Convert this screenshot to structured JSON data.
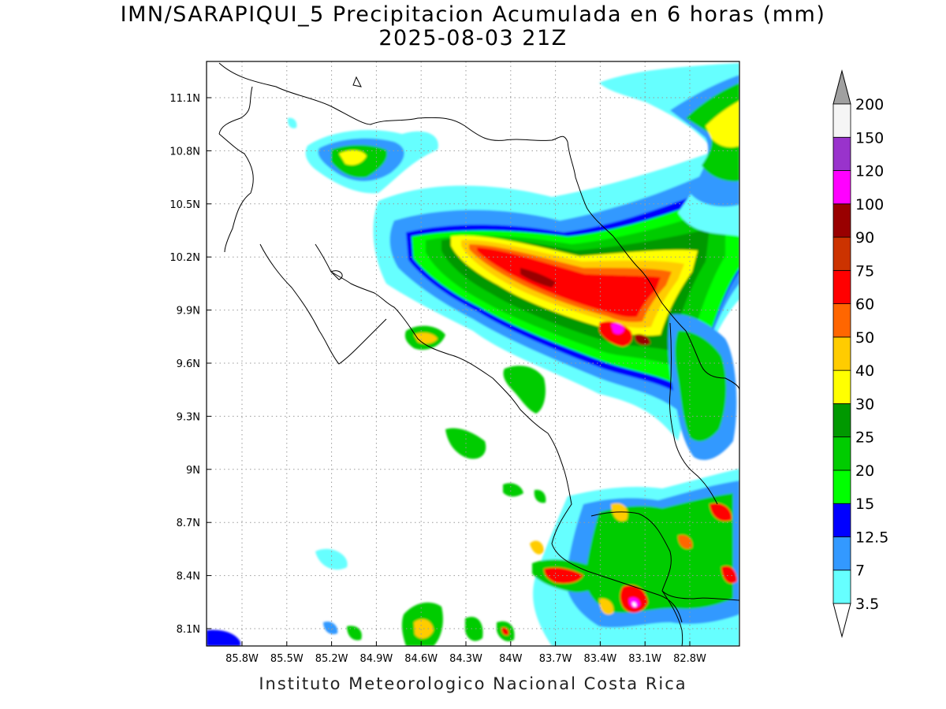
{
  "title": {
    "line1": "IMN/SARAPIQUI_5 Precipitacion Acumulada en 6 horas (mm)",
    "line2": "2025-08-03 21Z"
  },
  "footer": "Instituto Meteorologico Nacional Costa Rica",
  "lat_labels": [
    "11.1N",
    "10.8N",
    "10.5N",
    "10.2N",
    "9.9N",
    "9.6N",
    "9.3N",
    "9N",
    "8.7N",
    "8.4N",
    "8.1N"
  ],
  "lon_labels": [
    "85.8W",
    "85.5W",
    "85.2W",
    "84.9W",
    "84.6W",
    "84.3W",
    "84W",
    "83.7W",
    "83.4W",
    "83.1W",
    "82.8W"
  ],
  "colorbar": {
    "levels": [
      "3.5",
      "7",
      "12.5",
      "15",
      "20",
      "25",
      "30",
      "40",
      "50",
      "60",
      "75",
      "90",
      "100",
      "120",
      "150",
      "200"
    ],
    "colors": [
      "#66ffff",
      "#3399ff",
      "#0000ff",
      "#00ff00",
      "#00cc00",
      "#009900",
      "#ffff00",
      "#ffcc00",
      "#ff6600",
      "#ff0000",
      "#cc3300",
      "#990000",
      "#ff00ff",
      "#9933cc",
      "#f5f5f5"
    ],
    "over_color": "#a0a0a0",
    "under_color": "#ffffff"
  }
}
